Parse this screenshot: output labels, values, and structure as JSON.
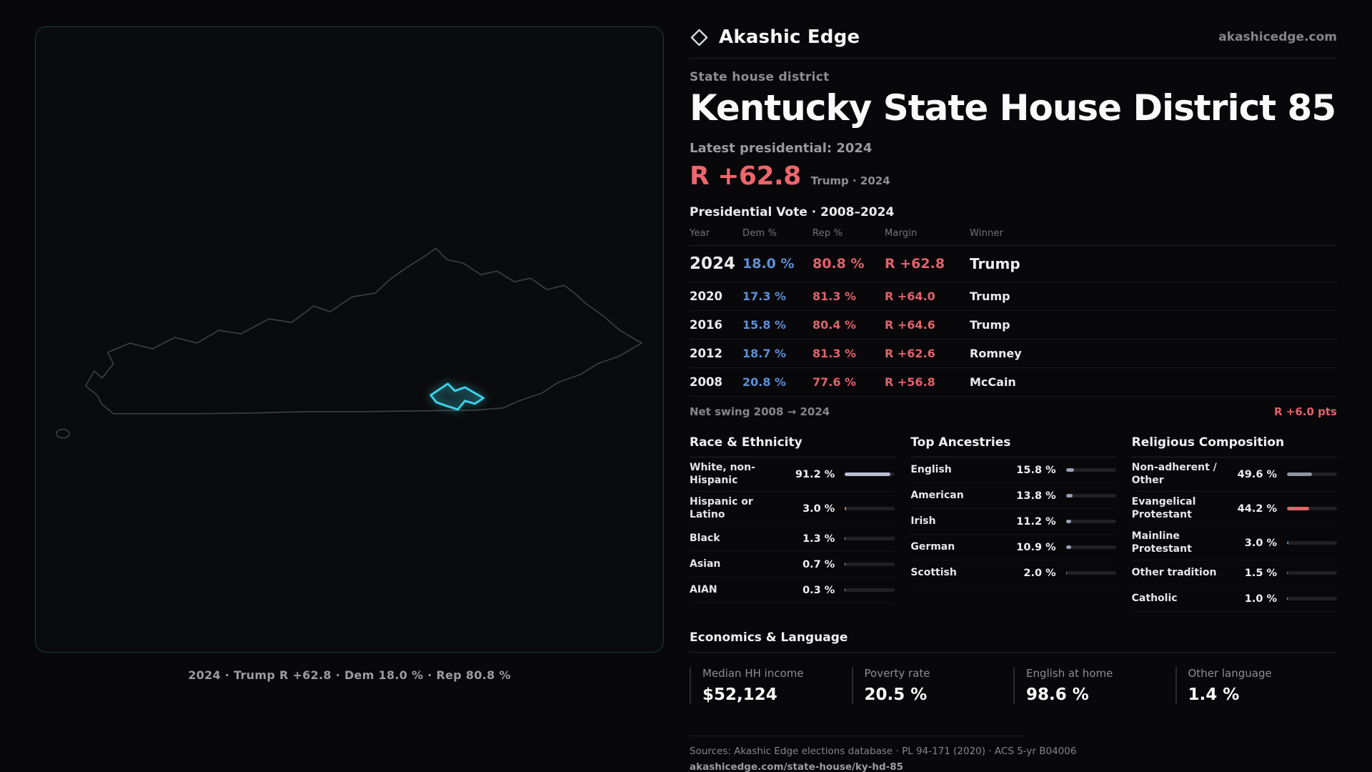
{
  "brand": {
    "name": "Akashic Edge",
    "domain": "akashicedge.com"
  },
  "page": {
    "kicker": "State house district",
    "title": "Kentucky State House District 85"
  },
  "latest": {
    "label": "Latest presidential: 2024",
    "margin": "R +62.8",
    "detail": "Trump · 2024"
  },
  "vote": {
    "title": "Presidential Vote · 2008–2024",
    "columns": [
      "Year",
      "Dem %",
      "Rep %",
      "Margin",
      "Winner"
    ],
    "rows": [
      {
        "year": "2024",
        "dem": "18.0 %",
        "rep": "80.8 %",
        "margin": "R +62.8",
        "winner": "Trump"
      },
      {
        "year": "2020",
        "dem": "17.3 %",
        "rep": "81.3 %",
        "margin": "R +64.0",
        "winner": "Trump"
      },
      {
        "year": "2016",
        "dem": "15.8 %",
        "rep": "80.4 %",
        "margin": "R +64.6",
        "winner": "Trump"
      },
      {
        "year": "2012",
        "dem": "18.7 %",
        "rep": "81.3 %",
        "margin": "R +62.6",
        "winner": "Romney"
      },
      {
        "year": "2008",
        "dem": "20.8 %",
        "rep": "77.6 %",
        "margin": "R +56.8",
        "winner": "McCain"
      }
    ],
    "net_swing_label": "Net swing 2008 → 2024",
    "net_swing_value": "R +6.0 pts"
  },
  "demographics": {
    "race": {
      "title": "Race & Ethnicity",
      "rows": [
        {
          "label": "White, non-Hispanic",
          "value": "91.2 %",
          "pct": 91.2,
          "color": "#b9bed2"
        },
        {
          "label": "Hispanic or Latino",
          "value": "3.0 %",
          "pct": 3.0,
          "color": "#e0914a"
        },
        {
          "label": "Black",
          "value": "1.3 %",
          "pct": 1.3,
          "color": "#c9cdd9"
        },
        {
          "label": "Asian",
          "value": "0.7 %",
          "pct": 0.7,
          "color": "#c9cdd9"
        },
        {
          "label": "AIAN",
          "value": "0.3 %",
          "pct": 0.3,
          "color": "#c9cdd9"
        }
      ]
    },
    "ancestry": {
      "title": "Top Ancestries",
      "rows": [
        {
          "label": "English",
          "value": "15.8 %",
          "pct": 15.8,
          "color": "#9ba1b5"
        },
        {
          "label": "American",
          "value": "13.8 %",
          "pct": 13.8,
          "color": "#9ba1b5"
        },
        {
          "label": "Irish",
          "value": "11.2 %",
          "pct": 11.2,
          "color": "#9ba1b5"
        },
        {
          "label": "German",
          "value": "10.9 %",
          "pct": 10.9,
          "color": "#9ba1b5"
        },
        {
          "label": "Scottish",
          "value": "2.0 %",
          "pct": 2.0,
          "color": "#9ba1b5"
        }
      ]
    },
    "religion": {
      "title": "Religious Composition",
      "rows": [
        {
          "label": "Non-adherent / Other",
          "value": "49.6 %",
          "pct": 49.6,
          "color": "#8f95a2"
        },
        {
          "label": "Evangelical Protestant",
          "value": "44.2 %",
          "pct": 44.2,
          "color": "#e0636b"
        },
        {
          "label": "Mainline Protestant",
          "value": "3.0 %",
          "pct": 3.0,
          "color": "#5e8fd6"
        },
        {
          "label": "Other tradition",
          "value": "1.5 %",
          "pct": 1.5,
          "color": "#a06bd8"
        },
        {
          "label": "Catholic",
          "value": "1.0 %",
          "pct": 1.0,
          "color": "#d9c34a"
        }
      ]
    }
  },
  "economics": {
    "title": "Economics & Language",
    "stats": [
      {
        "label": "Median HH income",
        "value": "$52,124"
      },
      {
        "label": "Poverty rate",
        "value": "20.5 %"
      },
      {
        "label": "English at home",
        "value": "98.6 %"
      },
      {
        "label": "Other language",
        "value": "1.4 %"
      }
    ]
  },
  "map": {
    "caption": "2024 · Trump R +62.8 · Dem 18.0 % · Rep 80.8 %"
  },
  "footer": {
    "sources": "Sources: Akashic Edge elections database · PL 94-171 (2020) · ACS 5-yr B04006",
    "url": "akashicedge.com/state-house/ky-hd-85"
  },
  "colors": {
    "dem": "#5e8fd6",
    "rep": "#e0636b",
    "accent": "#3fd0e6"
  }
}
